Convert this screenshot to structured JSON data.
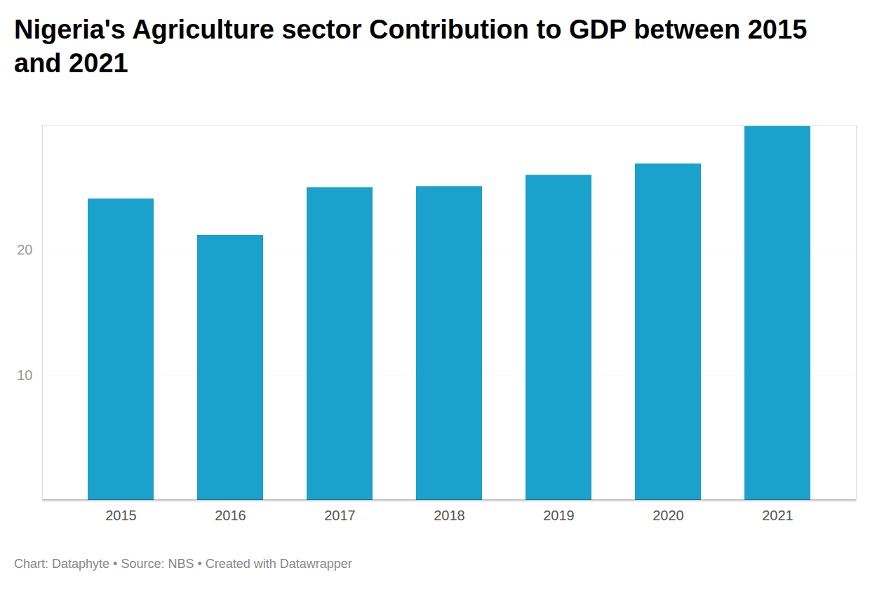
{
  "chart_data": {
    "type": "bar",
    "title": "Nigeria's Agriculture sector Contribution to GDP between 2015 and 2021",
    "caption": "Chart: Dataphyte • Source: NBS • Created with Datawrapper",
    "categories": [
      "2015",
      "2016",
      "2017",
      "2018",
      "2019",
      "2020",
      "2021"
    ],
    "values": [
      24.1,
      21.2,
      25.0,
      25.1,
      26.0,
      26.9,
      29.9
    ],
    "color": "#1aa1cc",
    "ylim": [
      0,
      30
    ],
    "yticks": [
      10,
      20
    ],
    "grid": true
  }
}
